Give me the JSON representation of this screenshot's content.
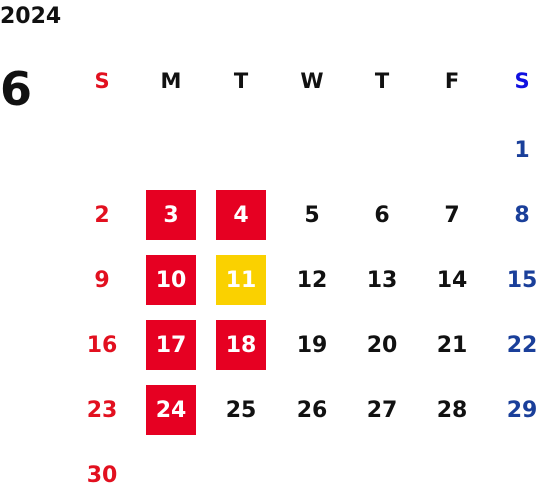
{
  "calendar": {
    "year": "2024",
    "month": "6",
    "weekdays": [
      "S",
      "M",
      "T",
      "W",
      "T",
      "F",
      "S"
    ],
    "colors": {
      "sunday": "#e2101f",
      "saturday": "#1a3f9a",
      "saturday_header": "#1010e0",
      "highlight_red": "#e60022",
      "highlight_yellow": "#fad100"
    },
    "weeks": [
      [
        "",
        "",
        "",
        "",
        "",
        "",
        "1"
      ],
      [
        "2",
        "3",
        "4",
        "5",
        "6",
        "7",
        "8"
      ],
      [
        "9",
        "10",
        "11",
        "12",
        "13",
        "14",
        "15"
      ],
      [
        "16",
        "17",
        "18",
        "19",
        "20",
        "21",
        "22"
      ],
      [
        "23",
        "24",
        "25",
        "26",
        "27",
        "28",
        "29"
      ],
      [
        "30",
        "",
        "",
        "",
        "",
        "",
        ""
      ]
    ],
    "highlighted_red": [
      "3",
      "4",
      "10",
      "17",
      "18",
      "24"
    ],
    "highlighted_yellow": [
      "11"
    ]
  }
}
